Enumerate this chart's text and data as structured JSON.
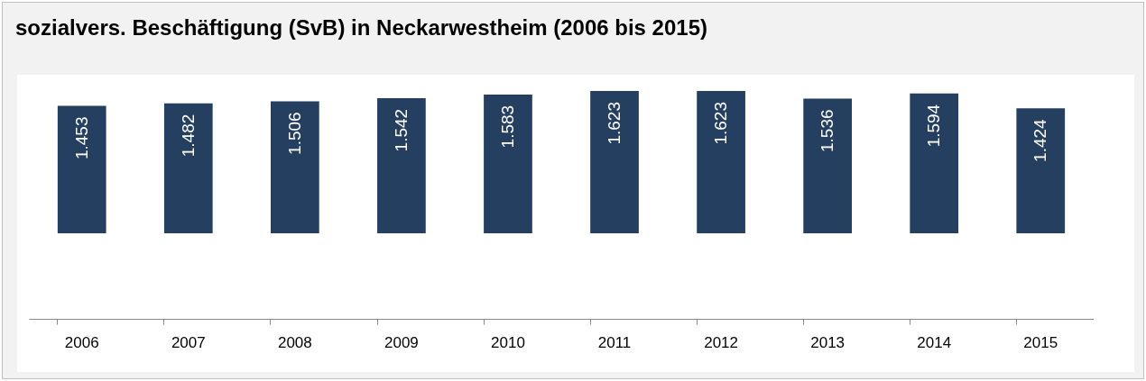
{
  "chart_data": {
    "type": "bar",
    "title": "sozialvers. Beschäftigung (SvB) in Neckarwestheim (2006 bis 2015)",
    "categories": [
      "2006",
      "2007",
      "2008",
      "2009",
      "2010",
      "2011",
      "2012",
      "2013",
      "2014",
      "2015"
    ],
    "values": [
      1453,
      1482,
      1506,
      1542,
      1583,
      1623,
      1623,
      1536,
      1594,
      1424
    ],
    "value_labels": [
      "1.453",
      "1.482",
      "1.506",
      "1.542",
      "1.583",
      "1.623",
      "1.623",
      "1.536",
      "1.594",
      "1.424"
    ],
    "color": "#243f60",
    "tick_labels": "x",
    "grid": false
  }
}
